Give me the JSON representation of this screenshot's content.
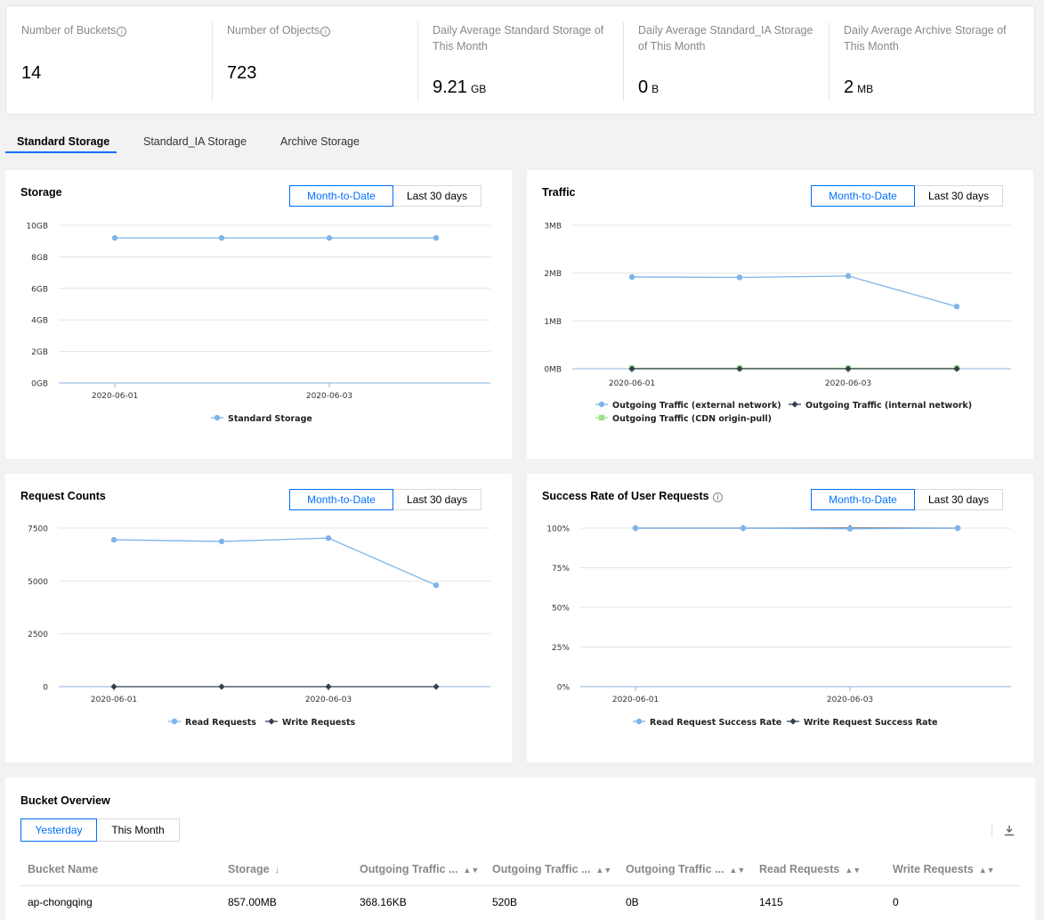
{
  "summary": {
    "stats": [
      {
        "label": "Number of Buckets",
        "value": "14",
        "unit": "",
        "info": true
      },
      {
        "label": "Number of Objects",
        "value": "723",
        "unit": "",
        "info": true
      },
      {
        "label": "Daily Average Standard Storage of This Month",
        "value": "9.21",
        "unit": "GB",
        "info": false
      },
      {
        "label": "Daily Average Standard_IA Storage of This Month",
        "value": "0",
        "unit": "B",
        "info": false
      },
      {
        "label": "Daily Average Archive Storage of This Month",
        "value": "2",
        "unit": "MB",
        "info": false
      }
    ]
  },
  "tabs": [
    "Standard Storage",
    "Standard_IA Storage",
    "Archive Storage"
  ],
  "period": {
    "month": "Month-to-Date",
    "last30": "Last 30 days"
  },
  "colors": {
    "accent": "#006eff",
    "blue_series": "#7eb4ea",
    "dark_series": "#344050",
    "green_series": "#9be28a"
  },
  "chart_data": [
    {
      "id": "storage",
      "type": "line",
      "title": "Storage",
      "x": [
        "2020-06-01",
        "2020-06-02",
        "2020-06-03",
        "2020-06-04"
      ],
      "x_ticks": [
        "2020-06-01",
        "2020-06-03"
      ],
      "y_ticks": [
        "10GB",
        "8GB",
        "6GB",
        "4GB",
        "2GB",
        "0GB"
      ],
      "ylim": [
        0,
        10
      ],
      "series": [
        {
          "name": "Standard Storage",
          "values": [
            9.2,
            9.2,
            9.2,
            9.2
          ]
        }
      ]
    },
    {
      "id": "traffic",
      "type": "line",
      "title": "Traffic",
      "x": [
        "2020-06-01",
        "2020-06-02",
        "2020-06-03",
        "2020-06-04"
      ],
      "x_ticks": [
        "2020-06-01",
        "2020-06-03"
      ],
      "y_ticks": [
        "3MB",
        "2MB",
        "1MB",
        "0MB"
      ],
      "ylim": [
        0,
        3
      ],
      "series": [
        {
          "name": "Outgoing Traffic (external network)",
          "values": [
            1.92,
            1.91,
            1.94,
            1.3
          ]
        },
        {
          "name": "Outgoing Traffic (internal network)",
          "values": [
            0,
            0,
            0,
            0
          ]
        },
        {
          "name": "Outgoing Traffic (CDN origin-pull)",
          "values": [
            0.01,
            0.01,
            0.01,
            0.01
          ]
        }
      ]
    },
    {
      "id": "requests",
      "type": "line",
      "title": "Request Counts",
      "x": [
        "2020-06-01",
        "2020-06-02",
        "2020-06-03",
        "2020-06-04"
      ],
      "x_ticks": [
        "2020-06-01",
        "2020-06-03"
      ],
      "y_ticks": [
        "7500",
        "5000",
        "2500",
        "0"
      ],
      "ylim": [
        0,
        7500
      ],
      "series": [
        {
          "name": "Read Requests",
          "values": [
            6950,
            6870,
            7030,
            4800
          ]
        },
        {
          "name": "Write Requests",
          "values": [
            0,
            0,
            0,
            0
          ]
        }
      ]
    },
    {
      "id": "success",
      "type": "line",
      "title": "Success Rate of User Requests",
      "x": [
        "2020-06-01",
        "2020-06-02",
        "2020-06-03",
        "2020-06-04"
      ],
      "x_ticks": [
        "2020-06-01",
        "2020-06-03"
      ],
      "y_ticks": [
        "100%",
        "75%",
        "50%",
        "25%",
        "0%"
      ],
      "ylim": [
        0,
        100
      ],
      "series": [
        {
          "name": "Read Request Success Rate",
          "values": [
            100,
            100,
            99.6,
            100
          ]
        },
        {
          "name": "Write Request Success Rate",
          "values": [
            100,
            100,
            100,
            100
          ]
        }
      ]
    }
  ],
  "bucket_overview": {
    "title": "Bucket Overview",
    "toggle": {
      "yesterday": "Yesterday",
      "this_month": "This Month"
    },
    "columns": [
      "Bucket Name",
      "Storage",
      "Outgoing Traffic ...",
      "Outgoing Traffic ...",
      "Outgoing Traffic ...",
      "Read Requests",
      "Write Requests"
    ],
    "rows": [
      [
        "ap-chongqing",
        "857.00MB",
        "368.16KB",
        "520B",
        "0B",
        "1415",
        "0"
      ]
    ]
  }
}
